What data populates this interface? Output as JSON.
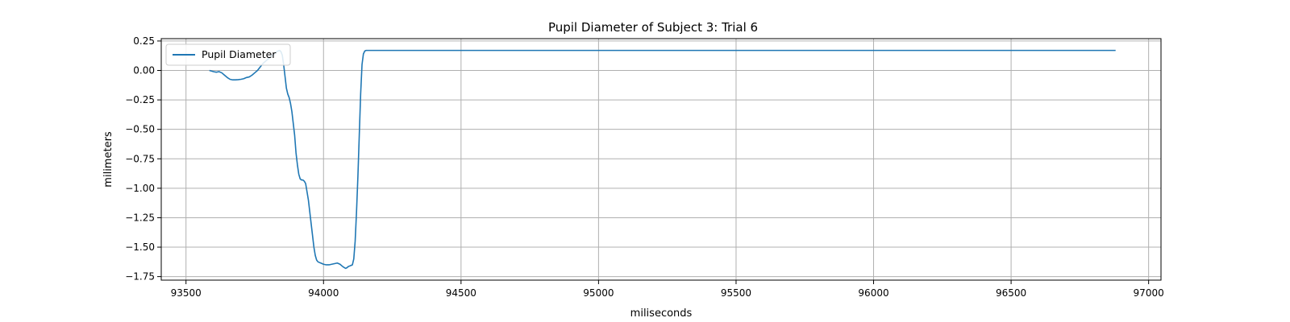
{
  "chart_data": {
    "type": "line",
    "title": "Pupil Diameter of Subject 3: Trial 6",
    "xlabel": "miliseconds",
    "ylabel": "milimeters",
    "xlim": [
      93410,
      97045
    ],
    "ylim": [
      -1.78,
      0.27
    ],
    "xticks": [
      93500,
      94000,
      94500,
      95000,
      95500,
      96000,
      96500,
      97000
    ],
    "xtick_labels": [
      "93500",
      "94000",
      "94500",
      "95000",
      "95500",
      "96000",
      "96500",
      "97000"
    ],
    "yticks": [
      0.25,
      0.0,
      -0.25,
      -0.5,
      -0.75,
      -1.0,
      -1.25,
      -1.5,
      -1.75
    ],
    "ytick_labels": [
      "0.25",
      "0.00",
      "−0.25",
      "−0.50",
      "−0.75",
      "−1.00",
      "−1.25",
      "−1.50",
      "−1.75"
    ],
    "grid": true,
    "legend_position": "top-left",
    "colors": {
      "series": "#1f77b4"
    },
    "series": [
      {
        "name": "Pupil Diameter",
        "x": [
          93585,
          93600,
          93610,
          93620,
          93630,
          93640,
          93650,
          93660,
          93670,
          93680,
          93690,
          93700,
          93710,
          93720,
          93730,
          93740,
          93750,
          93760,
          93770,
          93780,
          93790,
          93800,
          93810,
          93820,
          93830,
          93840,
          93845,
          93850,
          93855,
          93860,
          93865,
          93870,
          93875,
          93880,
          93885,
          93890,
          93895,
          93900,
          93905,
          93910,
          93915,
          93920,
          93925,
          93930,
          93935,
          93940,
          93945,
          93950,
          93955,
          93960,
          93965,
          93970,
          93975,
          93980,
          93985,
          93990,
          93995,
          94000,
          94010,
          94020,
          94030,
          94040,
          94050,
          94060,
          94070,
          94080,
          94085,
          94090,
          94095,
          94100,
          94105,
          94110,
          94115,
          94120,
          94125,
          94130,
          94135,
          94140,
          94145,
          94150,
          94155,
          94160,
          94170,
          94180,
          94200,
          94500,
          95000,
          95500,
          96000,
          96500,
          96880
        ],
        "y": [
          0.0,
          -0.01,
          -0.015,
          -0.01,
          -0.02,
          -0.04,
          -0.06,
          -0.075,
          -0.08,
          -0.08,
          -0.078,
          -0.075,
          -0.07,
          -0.06,
          -0.055,
          -0.04,
          -0.02,
          0.0,
          0.03,
          0.06,
          0.08,
          0.1,
          0.12,
          0.14,
          0.16,
          0.17,
          0.16,
          0.13,
          0.05,
          -0.05,
          -0.15,
          -0.2,
          -0.23,
          -0.28,
          -0.35,
          -0.45,
          -0.55,
          -0.7,
          -0.8,
          -0.88,
          -0.92,
          -0.93,
          -0.93,
          -0.94,
          -0.96,
          -1.03,
          -1.1,
          -1.2,
          -1.3,
          -1.4,
          -1.5,
          -1.57,
          -1.61,
          -1.625,
          -1.63,
          -1.635,
          -1.64,
          -1.645,
          -1.65,
          -1.65,
          -1.645,
          -1.64,
          -1.635,
          -1.645,
          -1.665,
          -1.68,
          -1.675,
          -1.665,
          -1.66,
          -1.655,
          -1.65,
          -1.6,
          -1.45,
          -1.2,
          -0.9,
          -0.55,
          -0.2,
          0.05,
          0.14,
          0.165,
          0.17,
          0.17,
          0.17,
          0.17,
          0.17,
          0.17,
          0.17,
          0.17,
          0.17,
          0.17,
          0.17
        ]
      }
    ]
  }
}
